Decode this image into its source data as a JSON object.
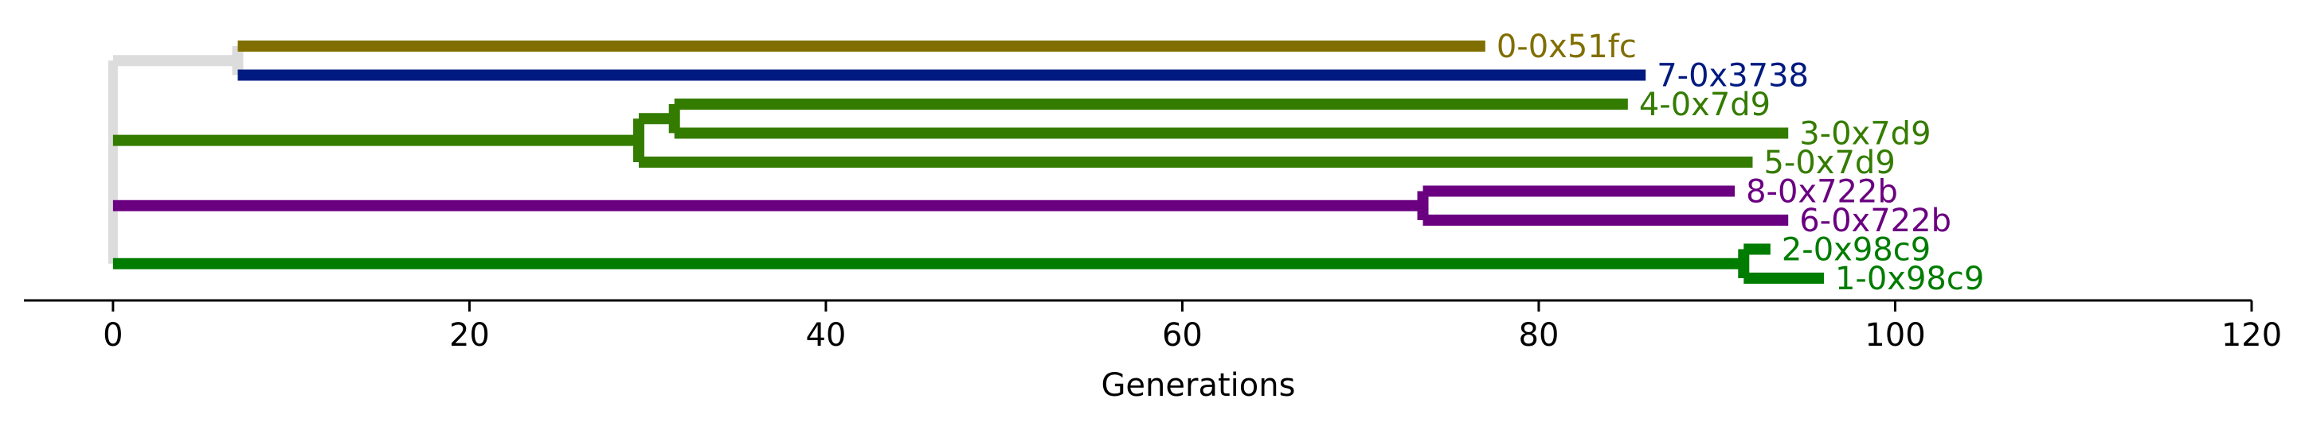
{
  "chart_data": {
    "type": "tree",
    "xlabel": "Generations",
    "xlim": [
      -5,
      120
    ],
    "xticks": [
      0,
      20,
      40,
      60,
      80,
      100,
      120
    ],
    "xtick_labels": [
      "0",
      "20",
      "40",
      "60",
      "80",
      "100",
      "120"
    ],
    "root_color": "#dcdcdc",
    "leaves": [
      {
        "label": "0-0x51fc",
        "generation": 77,
        "color": "#806f00"
      },
      {
        "label": "7-0x3738",
        "generation": 86,
        "color": "#001a80"
      },
      {
        "label": "4-0x7d9",
        "generation": 85,
        "color": "#347c00"
      },
      {
        "label": "3-0x7d9",
        "generation": 94,
        "color": "#347c00"
      },
      {
        "label": "5-0x7d9",
        "generation": 92,
        "color": "#347c00"
      },
      {
        "label": "8-0x722b",
        "generation": 91,
        "color": "#6a0080"
      },
      {
        "label": "6-0x722b",
        "generation": 94,
        "color": "#6a0080"
      },
      {
        "label": "2-0x98c9",
        "generation": 93,
        "color": "#007c00"
      },
      {
        "label": "1-0x98c9",
        "generation": 96,
        "color": "#007c00"
      }
    ],
    "internal_nodes": [
      {
        "name": "root",
        "generation": 0,
        "color": "#dcdcdc"
      },
      {
        "name": "clade-0-7",
        "generation": 7,
        "color": "#dcdcdc"
      },
      {
        "name": "clade-3-4-5",
        "generation": 29.5,
        "color": "#347c00"
      },
      {
        "name": "clade-3-4",
        "generation": 31.5,
        "color": "#347c00"
      },
      {
        "name": "clade-6-8",
        "generation": 73.5,
        "color": "#6a0080"
      },
      {
        "name": "clade-1-2",
        "generation": 91.5,
        "color": "#007c00"
      }
    ],
    "edges": [
      {
        "parent": "root",
        "child": "clade-0-7",
        "color": "#dcdcdc"
      },
      {
        "parent": "clade-0-7",
        "child": "0-0x51fc",
        "color": "#806f00"
      },
      {
        "parent": "clade-0-7",
        "child": "7-0x3738",
        "color": "#001a80"
      },
      {
        "parent": "root",
        "child": "clade-3-4-5",
        "color": "#347c00"
      },
      {
        "parent": "clade-3-4-5",
        "child": "clade-3-4",
        "color": "#347c00"
      },
      {
        "parent": "clade-3-4",
        "child": "4-0x7d9",
        "color": "#347c00"
      },
      {
        "parent": "clade-3-4",
        "child": "3-0x7d9",
        "color": "#347c00"
      },
      {
        "parent": "clade-3-4-5",
        "child": "5-0x7d9",
        "color": "#347c00"
      },
      {
        "parent": "root",
        "child": "clade-6-8",
        "color": "#6a0080"
      },
      {
        "parent": "clade-6-8",
        "child": "8-0x722b",
        "color": "#6a0080"
      },
      {
        "parent": "clade-6-8",
        "child": "6-0x722b",
        "color": "#6a0080"
      },
      {
        "parent": "root",
        "child": "clade-1-2",
        "color": "#007c00"
      },
      {
        "parent": "clade-1-2",
        "child": "2-0x98c9",
        "color": "#007c00"
      },
      {
        "parent": "clade-1-2",
        "child": "1-0x98c9",
        "color": "#007c00"
      }
    ]
  }
}
